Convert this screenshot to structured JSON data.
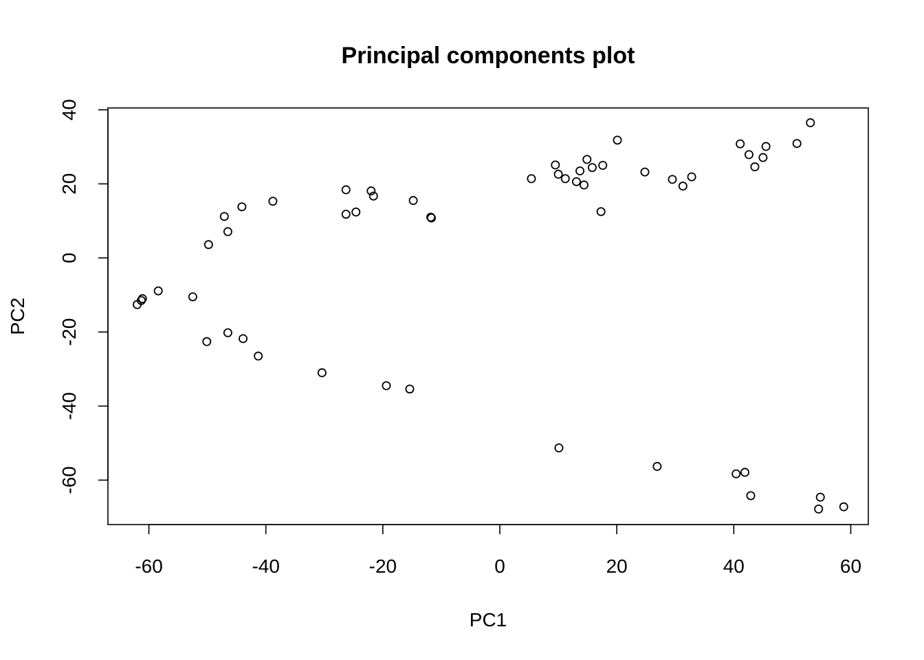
{
  "chart_data": {
    "type": "scatter",
    "title": "Principal components plot",
    "xlabel": "PC1",
    "ylabel": "PC2",
    "xlim": [
      -67,
      63
    ],
    "ylim": [
      -72,
      40.5
    ],
    "x_ticks": [
      -60,
      -40,
      -20,
      0,
      20,
      40,
      60
    ],
    "y_ticks": [
      -60,
      -40,
      -20,
      0,
      20,
      40
    ],
    "x_tick_labels": [
      "-60",
      "-40",
      "-20",
      "0",
      "20",
      "40",
      "60"
    ],
    "y_tick_labels": [
      "-60",
      "-40",
      "-20",
      "0",
      "20",
      "40"
    ],
    "grid": false,
    "marker": "open-circle",
    "marker_color": "#000000",
    "points": [
      {
        "x": -62.0,
        "y": -12.6
      },
      {
        "x": -61.3,
        "y": -11.5
      },
      {
        "x": -61.1,
        "y": -11.0
      },
      {
        "x": -58.4,
        "y": -8.9
      },
      {
        "x": -52.5,
        "y": -10.5
      },
      {
        "x": -50.1,
        "y": -22.6
      },
      {
        "x": -46.5,
        "y": -20.2
      },
      {
        "x": -43.9,
        "y": -21.8
      },
      {
        "x": -41.3,
        "y": -26.5
      },
      {
        "x": -30.4,
        "y": -31.0
      },
      {
        "x": -19.4,
        "y": -34.5
      },
      {
        "x": -15.4,
        "y": -35.4
      },
      {
        "x": 10.1,
        "y": -51.3
      },
      {
        "x": 26.9,
        "y": -56.3
      },
      {
        "x": 40.4,
        "y": -58.3
      },
      {
        "x": 41.9,
        "y": -57.9
      },
      {
        "x": 42.9,
        "y": -64.2
      },
      {
        "x": 54.5,
        "y": -67.8
      },
      {
        "x": 54.8,
        "y": -64.6
      },
      {
        "x": 58.8,
        "y": -67.2
      },
      {
        "x": -49.8,
        "y": 3.6
      },
      {
        "x": -46.5,
        "y": 7.1
      },
      {
        "x": -47.1,
        "y": 11.2
      },
      {
        "x": -44.1,
        "y": 13.8
      },
      {
        "x": -38.8,
        "y": 15.3
      },
      {
        "x": -26.3,
        "y": 18.4
      },
      {
        "x": -26.3,
        "y": 11.8
      },
      {
        "x": -24.6,
        "y": 12.4
      },
      {
        "x": -22.0,
        "y": 18.1
      },
      {
        "x": -21.6,
        "y": 16.7
      },
      {
        "x": -14.8,
        "y": 15.5
      },
      {
        "x": -11.8,
        "y": 11.0
      },
      {
        "x": -11.7,
        "y": 10.8
      },
      {
        "x": 5.4,
        "y": 21.4
      },
      {
        "x": 9.5,
        "y": 25.1
      },
      {
        "x": 10.0,
        "y": 22.6
      },
      {
        "x": 11.2,
        "y": 21.4
      },
      {
        "x": 13.1,
        "y": 20.6
      },
      {
        "x": 13.7,
        "y": 23.5
      },
      {
        "x": 14.4,
        "y": 19.7
      },
      {
        "x": 14.9,
        "y": 26.6
      },
      {
        "x": 15.8,
        "y": 24.4
      },
      {
        "x": 17.3,
        "y": 12.5
      },
      {
        "x": 17.6,
        "y": 25.0
      },
      {
        "x": 20.1,
        "y": 31.8
      },
      {
        "x": 24.8,
        "y": 23.2
      },
      {
        "x": 29.5,
        "y": 21.2
      },
      {
        "x": 31.3,
        "y": 19.4
      },
      {
        "x": 32.8,
        "y": 21.9
      },
      {
        "x": 41.1,
        "y": 30.8
      },
      {
        "x": 42.6,
        "y": 27.9
      },
      {
        "x": 43.6,
        "y": 24.6
      },
      {
        "x": 45.0,
        "y": 27.1
      },
      {
        "x": 45.5,
        "y": 30.1
      },
      {
        "x": 50.8,
        "y": 30.9
      },
      {
        "x": 53.1,
        "y": 36.5
      }
    ]
  }
}
